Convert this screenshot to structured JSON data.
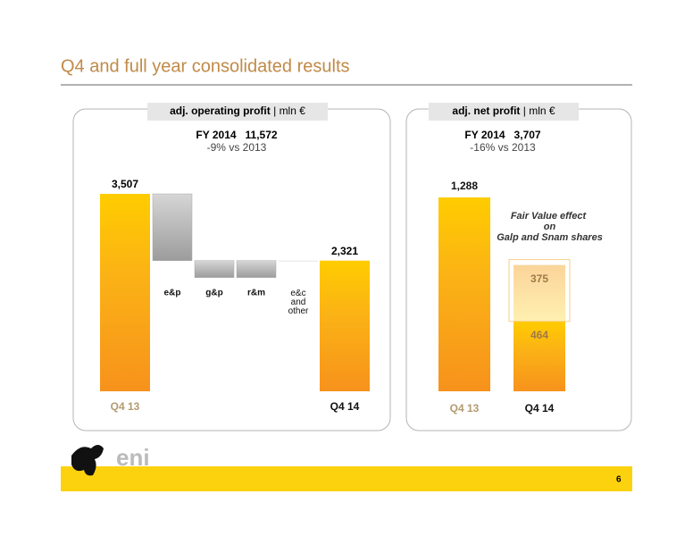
{
  "page": {
    "title": "Q4 and full year consolidated results",
    "page_number": "6",
    "logo": "eni"
  },
  "chart_data": [
    {
      "type": "waterfall",
      "header": "adj. operating profit",
      "unit": "mln €",
      "subtitle": "FY 2014   11,572",
      "note": "-9% vs 2013",
      "categories": [
        "Q4 13",
        "e&p",
        "g&p",
        "r&m",
        "e&c and other",
        "Q4 14"
      ],
      "values": [
        3507,
        -1186,
        -300,
        300,
        0,
        2321
      ],
      "value_labels": [
        "3,507",
        null,
        null,
        null,
        null,
        "2,321"
      ],
      "color": "#f9a31b",
      "delta_color": "#aaaaaa"
    },
    {
      "type": "stacked_bar",
      "header": "adj. net profit",
      "unit": "mln €",
      "subtitle": "FY 2014   3,707",
      "note": "-16% vs 2013",
      "categories": [
        "Q4 13",
        "Q4 14"
      ],
      "series": [
        {
          "values": [
            1288,
            464
          ],
          "value_labels": [
            "1,288",
            "464"
          ],
          "color": "#f9a31b"
        },
        {
          "name": "Fair Value effect on Galp and Snam shares",
          "values": [
            null,
            375
          ],
          "value_labels": [
            null,
            "375"
          ],
          "color": "#ffe48a"
        }
      ]
    }
  ]
}
